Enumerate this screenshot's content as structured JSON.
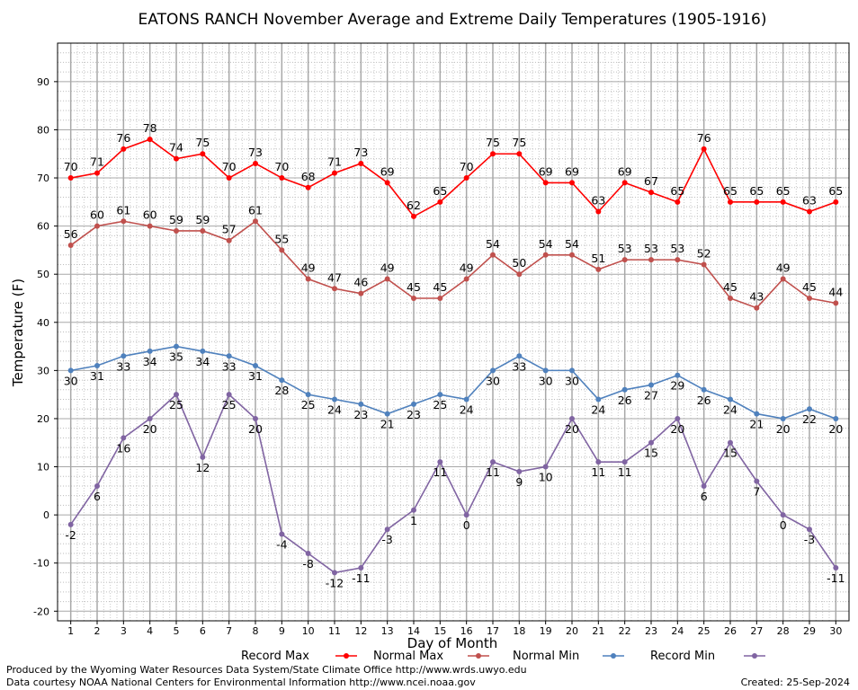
{
  "chart_data": {
    "type": "line",
    "title": "EATONS RANCH November Average and Extreme Daily Temperatures (1905-1916)",
    "xlabel": "Day of Month",
    "ylabel": "Temperature (F)",
    "xlim": [
      0.5,
      30.5
    ],
    "ylim": [
      -22,
      98
    ],
    "y_ticks": [
      -20,
      -10,
      0,
      10,
      20,
      30,
      40,
      50,
      60,
      70,
      80,
      90
    ],
    "x": [
      1,
      2,
      3,
      4,
      5,
      6,
      7,
      8,
      9,
      10,
      11,
      12,
      13,
      14,
      15,
      16,
      17,
      18,
      19,
      20,
      21,
      22,
      23,
      24,
      25,
      26,
      27,
      28,
      29,
      30
    ],
    "grid": true,
    "legend_position": "bottom",
    "series": [
      {
        "name": "Record Max",
        "color": "#ff0000",
        "values": [
          70,
          71,
          76,
          78,
          74,
          75,
          70,
          73,
          70,
          68,
          71,
          73,
          69,
          62,
          65,
          70,
          75,
          75,
          69,
          69,
          63,
          69,
          67,
          65,
          76,
          65,
          65,
          65,
          63,
          65
        ]
      },
      {
        "name": "Normal Max",
        "color": "#c0504d",
        "values": [
          56,
          60,
          61,
          60,
          59,
          59,
          57,
          61,
          55,
          49,
          47,
          46,
          49,
          45,
          45,
          49,
          54,
          50,
          54,
          54,
          51,
          53,
          53,
          53,
          52,
          45,
          43,
          49,
          45,
          44
        ]
      },
      {
        "name": "Normal Min",
        "color": "#4f81bd",
        "values": [
          30,
          31,
          33,
          34,
          35,
          34,
          33,
          31,
          28,
          25,
          24,
          23,
          21,
          23,
          25,
          24,
          30,
          33,
          30,
          30,
          24,
          26,
          27,
          29,
          26,
          24,
          21,
          20,
          22,
          20
        ]
      },
      {
        "name": "Record Min",
        "color": "#8064a2",
        "values": [
          -2,
          6,
          16,
          20,
          25,
          12,
          25,
          20,
          -4,
          -8,
          -12,
          -11,
          -3,
          1,
          11,
          0,
          11,
          9,
          10,
          20,
          11,
          11,
          15,
          20,
          6,
          15,
          7,
          0,
          -3,
          -11
        ]
      }
    ]
  },
  "footer": {
    "produced_by": "Produced by the Wyoming Water Resources Data System/State Climate Office http://www.wrds.uwyo.edu",
    "courtesy": "Data courtesy NOAA National Centers for Environmental Information http://www.ncei.noaa.gov",
    "created": "Created:  25-Sep-2024"
  }
}
